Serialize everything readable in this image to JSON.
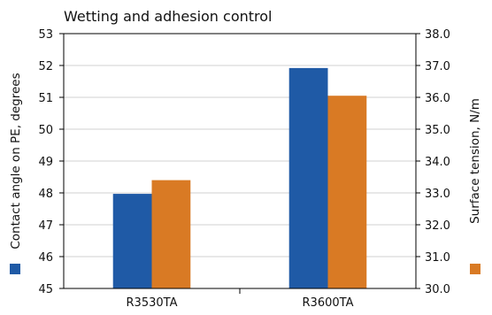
{
  "chart_data": {
    "type": "bar",
    "title": "Wetting and adhesion control",
    "categories": [
      "R3530TA",
      "R3600TA"
    ],
    "series": [
      {
        "name": "Contact angle on PE, degrees",
        "axis": "left",
        "color": "#1f5aa6",
        "values": [
          47.97,
          51.92
        ]
      },
      {
        "name": "Surface tension, N/m",
        "axis": "right",
        "color": "#d97a24",
        "values": [
          33.4,
          36.05
        ]
      }
    ],
    "y_left": {
      "label": "Contact angle on PE, degrees",
      "ylim": [
        45,
        53
      ],
      "ticks": [
        "45",
        "46",
        "47",
        "48",
        "49",
        "50",
        "51",
        "52",
        "53"
      ]
    },
    "y_right": {
      "label": "Surface tension, N/m",
      "ylim": [
        30.0,
        38.0
      ],
      "ticks": [
        "30.0",
        "31.0",
        "32.0",
        "33.0",
        "34.0",
        "35.0",
        "36.0",
        "37.0",
        "38.0"
      ]
    },
    "grid": true,
    "legend": "axis-title markers"
  }
}
